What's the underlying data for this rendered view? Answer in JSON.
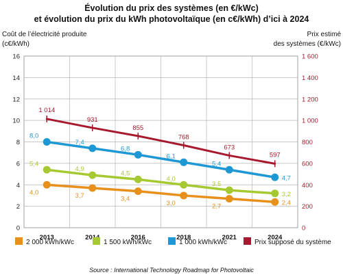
{
  "chart_data": {
    "type": "line",
    "title": [
      "Évolution du prix des systèmes (en €/kWc)",
      "et évolution du prix du kWh photovoltaïque (en c€/kWh) d’ici à 2024"
    ],
    "ylabel_left": [
      "Coût de l’électricité produite",
      "(c€/kWh)"
    ],
    "ylabel_right": [
      "Prix estimé",
      "des systèmes (€/kWc)"
    ],
    "categories": [
      "2013",
      "2014",
      "2016",
      "2018",
      "2021",
      "2024"
    ],
    "ylim_left": [
      0,
      16
    ],
    "yticks_left": [
      0,
      2,
      4,
      6,
      8,
      10,
      12,
      14,
      16
    ],
    "ylim_right": [
      0,
      1600
    ],
    "yticks_right": [
      "0",
      "200",
      "400",
      "600",
      "800",
      "1 000",
      "1 200",
      "1 400",
      "1 600"
    ],
    "grid": true,
    "legend_position": "bottom",
    "series": [
      {
        "name": "2 000 kWh/kWc",
        "axis": "left",
        "color": "#e8901c",
        "values": [
          4.0,
          3.7,
          3.4,
          3.0,
          2.7,
          2.4
        ],
        "labels": [
          "4,0",
          "3,7",
          "3,4",
          "3,0",
          "2,7",
          "2,4"
        ]
      },
      {
        "name": "1 500 kWh/kWc",
        "axis": "left",
        "color": "#a6c932",
        "values": [
          5.4,
          4.9,
          4.5,
          4.0,
          3.5,
          3.2
        ],
        "labels": [
          "5,4",
          "4,9",
          "4,5",
          "4,0",
          "3,5",
          "3,2"
        ]
      },
      {
        "name": "1 000 kWh/kWc",
        "axis": "left",
        "color": "#1e98d4",
        "values": [
          8.0,
          7.4,
          6.8,
          6.1,
          5.4,
          4.7
        ],
        "labels": [
          "8,0",
          "7,4",
          "6,8",
          "6,1",
          "5,4",
          "4,7"
        ]
      },
      {
        "name": "Prix supposé du système",
        "axis": "right",
        "color": "#a6192e",
        "values": [
          1014,
          931,
          855,
          768,
          673,
          597
        ],
        "labels": [
          "1 014",
          "931",
          "855",
          "768",
          "673",
          "597"
        ]
      }
    ],
    "source": "Source : International Technology Roadmap for Photovoltaic"
  }
}
